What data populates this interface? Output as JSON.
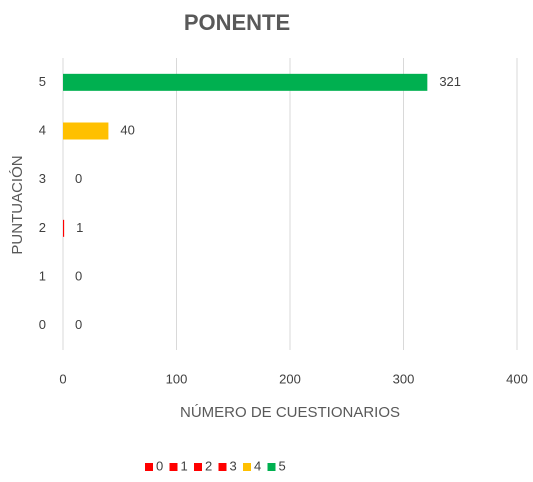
{
  "chart_data": {
    "type": "bar",
    "orientation": "horizontal",
    "title": "PONENTE",
    "xlabel": "NÚMERO DE CUESTIONARIOS",
    "ylabel": "PUNTUACIÓN",
    "categories": [
      "0",
      "1",
      "2",
      "3",
      "4",
      "5"
    ],
    "values": [
      0,
      0,
      1,
      0,
      40,
      321
    ],
    "colors": [
      "#ff0000",
      "#ff0000",
      "#ff0000",
      "#ff0000",
      "#ffc000",
      "#00b050"
    ],
    "xlim": [
      0,
      400
    ],
    "xticks": [
      0,
      100,
      200,
      300,
      400
    ],
    "grid": true,
    "legend": "bottom"
  }
}
